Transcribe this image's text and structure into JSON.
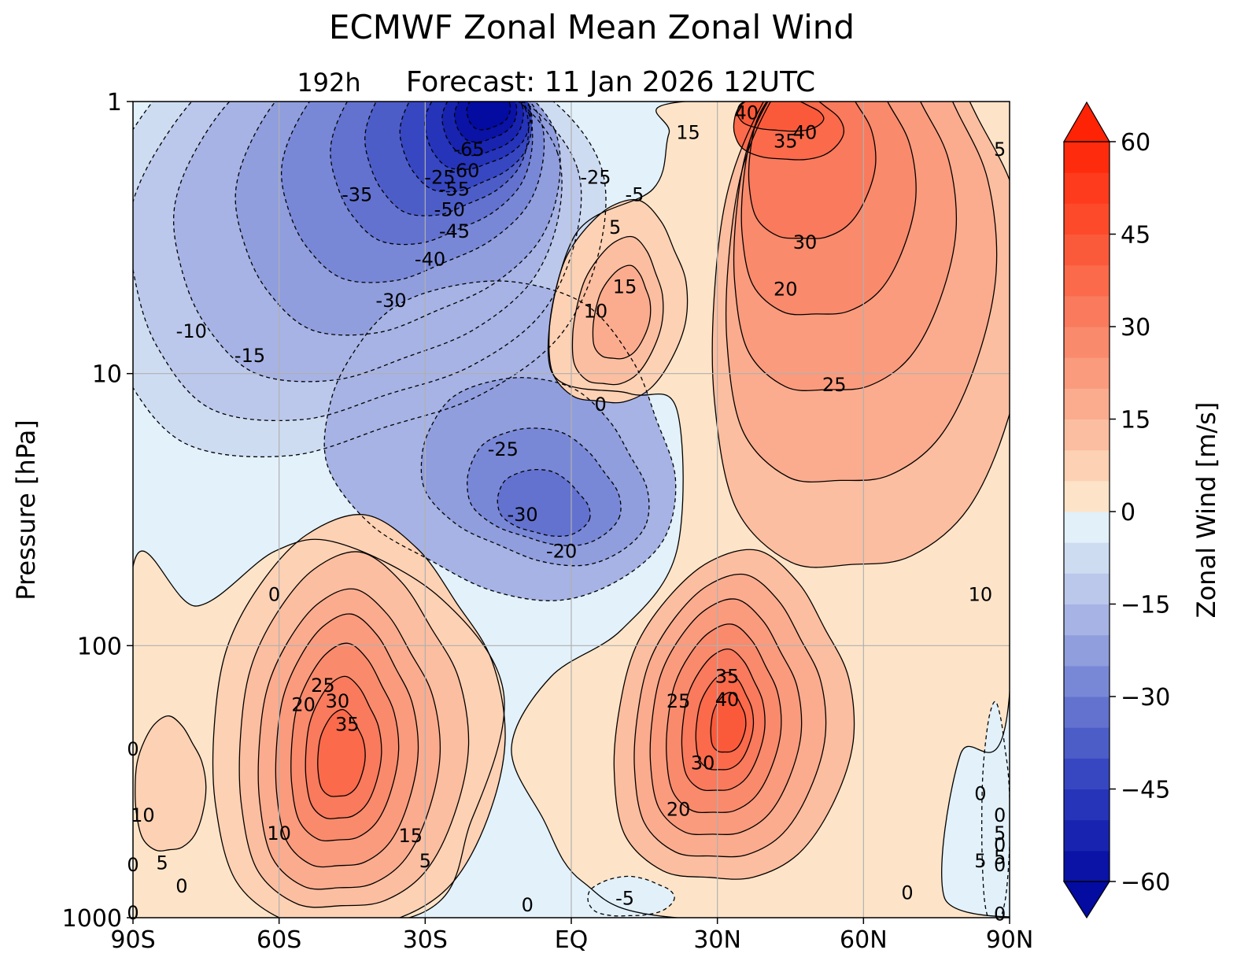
{
  "chart_data": {
    "type": "contour",
    "title": "ECMWF Zonal Mean Zonal Wind",
    "subtitle_left": "192h",
    "subtitle_main": "Forecast:  11 Jan 2026  12UTC",
    "ylabel": "Pressure [hPa]",
    "x_tick_labels": [
      "90S",
      "60S",
      "30S",
      "EQ",
      "30N",
      "60N",
      "90N"
    ],
    "x_ticks_deg": [
      -90,
      -60,
      -30,
      0,
      30,
      60,
      90
    ],
    "y_tick_labels": [
      "1",
      "10",
      "100",
      "1000"
    ],
    "y_ticks_hpa": [
      1,
      10,
      100,
      1000
    ],
    "y_scale": "log",
    "y_inverted": true,
    "xlim": [
      -90,
      90
    ],
    "ylim": [
      1000,
      1
    ],
    "grid": true,
    "colorbar": {
      "label": "Zonal Wind [m/s]",
      "tick_labels": [
        "60",
        "45",
        "30",
        "15",
        "0",
        "−15",
        "−30",
        "−45",
        "−60"
      ],
      "ticks": [
        60,
        45,
        30,
        15,
        0,
        -15,
        -30,
        -45,
        -60
      ],
      "range": [
        -60,
        60
      ],
      "step": 5,
      "extend": "both",
      "colormap": "blue-white-red"
    },
    "contour_interval": 5,
    "features": [
      {
        "name": "southern-stratospheric-easterlies",
        "lat": -20,
        "p": 1.5,
        "value": -65,
        "sign": "negative"
      },
      {
        "name": "northern-polar-vortex",
        "lat": 45,
        "p": 1.3,
        "value": 40,
        "sign": "positive"
      },
      {
        "name": "southern-subtropical-jet",
        "lat": -46,
        "p": 200,
        "value": 35,
        "sign": "positive"
      },
      {
        "name": "northern-subtropical-jet",
        "lat": 33,
        "p": 170,
        "value": 40,
        "sign": "positive"
      },
      {
        "name": "equatorial-stratospheric-westerlies",
        "lat": 4,
        "p": 5,
        "value": 15,
        "sign": "positive"
      },
      {
        "name": "lower-stratosphere-easterlies",
        "lat": -5,
        "p": 30,
        "value": -30,
        "sign": "negative"
      }
    ],
    "contour_labels": [
      {
        "text": "-65",
        "lat": -21,
        "p": 1.5
      },
      {
        "text": "-60",
        "lat": -22,
        "p": 1.8
      },
      {
        "text": "-55",
        "lat": -24,
        "p": 2.1
      },
      {
        "text": "-50",
        "lat": -25,
        "p": 2.5
      },
      {
        "text": "-45",
        "lat": -24,
        "p": 3.0
      },
      {
        "text": "-40",
        "lat": -29,
        "p": 3.8
      },
      {
        "text": "-35",
        "lat": -44,
        "p": 2.2
      },
      {
        "text": "-30",
        "lat": -37,
        "p": 5.4
      },
      {
        "text": "-25",
        "lat": -27,
        "p": 1.9
      },
      {
        "text": "-25",
        "lat": 5,
        "p": 1.9
      },
      {
        "text": "-25",
        "lat": -14,
        "p": 19
      },
      {
        "text": "-30",
        "lat": -10,
        "p": 33
      },
      {
        "text": "-20",
        "lat": -2,
        "p": 45
      },
      {
        "text": "-15",
        "lat": -66,
        "p": 8.6
      },
      {
        "text": "-10",
        "lat": -78,
        "p": 7.0
      },
      {
        "text": "-5",
        "lat": 13,
        "p": 2.2
      },
      {
        "text": "-5",
        "lat": 11,
        "p": 850
      },
      {
        "text": "5",
        "lat": 9,
        "p": 2.9
      },
      {
        "text": "15",
        "lat": 11,
        "p": 4.8
      },
      {
        "text": "10",
        "lat": 5,
        "p": 5.9
      },
      {
        "text": "0",
        "lat": 6,
        "p": 13
      },
      {
        "text": "15",
        "lat": 24,
        "p": 1.3
      },
      {
        "text": "40",
        "lat": 36,
        "p": 1.1
      },
      {
        "text": "40",
        "lat": 48,
        "p": 1.3
      },
      {
        "text": "35",
        "lat": 44,
        "p": 1.4
      },
      {
        "text": "30",
        "lat": 48,
        "p": 3.3
      },
      {
        "text": "20",
        "lat": 44,
        "p": 4.9
      },
      {
        "text": "25",
        "lat": 54,
        "p": 11
      },
      {
        "text": "10",
        "lat": 84,
        "p": 65
      },
      {
        "text": "5",
        "lat": 88,
        "p": 1.5
      },
      {
        "text": "0",
        "lat": -61,
        "p": 65
      },
      {
        "text": "35",
        "lat": 32,
        "p": 130
      },
      {
        "text": "40",
        "lat": 32,
        "p": 158
      },
      {
        "text": "25",
        "lat": 22,
        "p": 160
      },
      {
        "text": "30",
        "lat": 27,
        "p": 270
      },
      {
        "text": "20",
        "lat": 22,
        "p": 400
      },
      {
        "text": "0",
        "lat": 84,
        "p": 350
      },
      {
        "text": "25",
        "lat": -51,
        "p": 140
      },
      {
        "text": "30",
        "lat": -48,
        "p": 160
      },
      {
        "text": "20",
        "lat": -55,
        "p": 165
      },
      {
        "text": "35",
        "lat": -46,
        "p": 195
      },
      {
        "text": "10",
        "lat": -88,
        "p": 420
      },
      {
        "text": "10",
        "lat": -60,
        "p": 490
      },
      {
        "text": "15",
        "lat": -33,
        "p": 500
      },
      {
        "text": "5",
        "lat": -30,
        "p": 620
      },
      {
        "text": "0",
        "lat": -90,
        "p": 240
      },
      {
        "text": "0",
        "lat": -90,
        "p": 640
      },
      {
        "text": "5",
        "lat": -84,
        "p": 630
      },
      {
        "text": "0",
        "lat": -80,
        "p": 765
      },
      {
        "text": "0",
        "lat": -90,
        "p": 960
      },
      {
        "text": "0",
        "lat": -9,
        "p": 900
      },
      {
        "text": "0",
        "lat": 69,
        "p": 810
      },
      {
        "text": "5",
        "lat": 84,
        "p": 620
      },
      {
        "text": "0",
        "lat": 88,
        "p": 420
      },
      {
        "text": "5",
        "lat": 88,
        "p": 490
      },
      {
        "text": "0",
        "lat": 88,
        "p": 540
      },
      {
        "text": "5",
        "lat": 88,
        "p": 600
      },
      {
        "text": "0",
        "lat": 88,
        "p": 640
      },
      {
        "text": "0",
        "lat": 88,
        "p": 970
      }
    ]
  }
}
